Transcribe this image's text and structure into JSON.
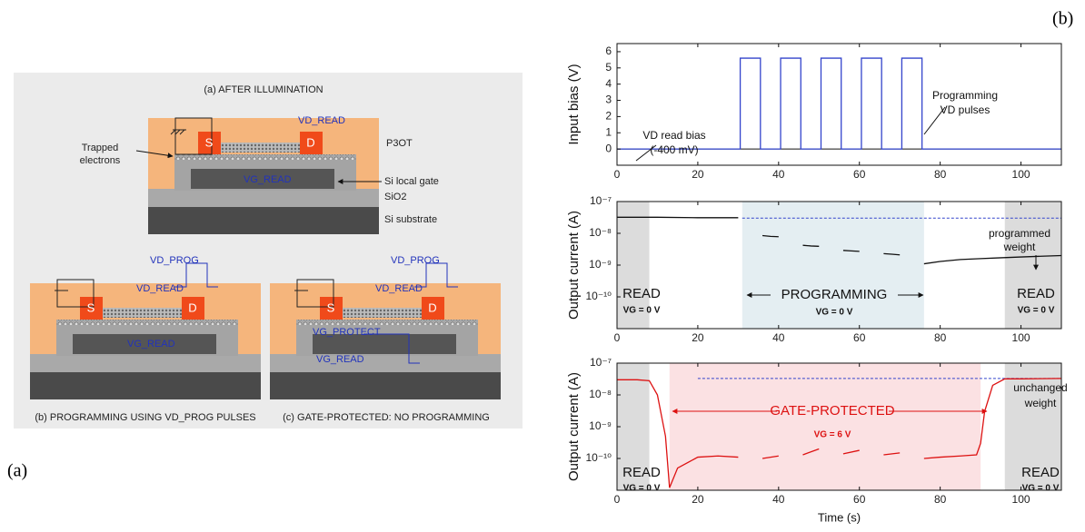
{
  "figure_labels": {
    "a": "(a)",
    "b": "(b)"
  },
  "diagram": {
    "panels": [
      {
        "caption": "(a) AFTER ILLUMINATION",
        "labels": [
          "VD_READ",
          "P3OT",
          "Trapped",
          "electrons",
          "Si local gate",
          "SiO2",
          "Si substrate",
          "VG_READ",
          "S",
          "D"
        ]
      },
      {
        "caption": "(b) PROGRAMMING USING VD_PROG PULSES",
        "labels": [
          "VD_PROG",
          "VD_READ",
          "VG_READ",
          "S",
          "D"
        ]
      },
      {
        "caption": "(c) GATE-PROTECTED: NO PROGRAMMING",
        "labels": [
          "VD_PROG",
          "VD_READ",
          "VG_PROTECT",
          "VG_READ",
          "S",
          "D"
        ]
      }
    ]
  },
  "chart_data": [
    {
      "type": "line",
      "ylabel": "Input bias (V)",
      "x": [
        0,
        30.5,
        30.5,
        35.5,
        35.5,
        40.5,
        40.5,
        45.5,
        45.5,
        50.5,
        50.5,
        55.5,
        55.5,
        60.5,
        60.5,
        65.5,
        65.5,
        70.5,
        70.5,
        75.5,
        75.5,
        110
      ],
      "series": [
        {
          "color": "#3344cc",
          "values": [
            0,
            0,
            5.6,
            5.6,
            0,
            0,
            5.6,
            5.6,
            0,
            0,
            5.6,
            5.6,
            0,
            0,
            5.6,
            5.6,
            0,
            0,
            5.6,
            5.6,
            0,
            0
          ]
        }
      ],
      "hline": 0,
      "xlim": [
        0,
        110
      ],
      "xticks": [
        0,
        20,
        40,
        60,
        80,
        100
      ],
      "ylim": [
        -1,
        6.5
      ],
      "yticks": [
        0,
        1,
        2,
        3,
        4,
        5,
        6
      ],
      "annotations": [
        "VD read bias",
        "(-400 mV)",
        "Programming",
        "VD pulses"
      ]
    },
    {
      "type": "line",
      "ylabel": "Output current (A)",
      "log_scale": true,
      "x": [
        0,
        10,
        20,
        30,
        31,
        36,
        38,
        40,
        41,
        46,
        48,
        50,
        51,
        56,
        58,
        60,
        61,
        66,
        68,
        70,
        71,
        76,
        80,
        85,
        90,
        95,
        100,
        105,
        110
      ],
      "series": [
        {
          "color": "#111111",
          "values": [
            3.2e-08,
            3.2e-08,
            3.1e-08,
            3.1e-08,
            null,
            8.5e-09,
            8e-09,
            7.8e-09,
            null,
            4.2e-09,
            4e-09,
            3.9e-09,
            null,
            2.9e-09,
            2.8e-09,
            2.7e-09,
            null,
            2.3e-09,
            2.2e-09,
            2.1e-09,
            null,
            1.1e-09,
            1.3e-09,
            1.5e-09,
            1.6e-09,
            1.7e-09,
            1.8e-09,
            1.9e-09,
            2e-09
          ]
        }
      ],
      "ref_line": {
        "value": 3e-08,
        "x0": 31,
        "x1": 110,
        "color": "#3344cc"
      },
      "regions": [
        {
          "x0": 0,
          "x1": 8,
          "color": "#dcdcdc"
        },
        {
          "x0": 31,
          "x1": 76,
          "color": "#e4eef2"
        },
        {
          "x0": 96,
          "x1": 110,
          "color": "#dcdcdc"
        }
      ],
      "xlim": [
        0,
        110
      ],
      "xticks": [
        0,
        20,
        40,
        60,
        80,
        100
      ],
      "ylim": [
        1e-11,
        1e-07
      ],
      "yticks": [
        {
          "value": 1e-07,
          "label": "10⁻⁷"
        },
        {
          "value": 1e-08,
          "label": "10⁻⁸"
        },
        {
          "value": 1e-09,
          "label": "10⁻⁹"
        },
        {
          "value": 1e-10,
          "label": "10⁻¹⁰"
        }
      ],
      "annotations": [
        "READ",
        "VG = 0 V",
        "PROGRAMMING",
        "VG = 0 V",
        "READ",
        "VG = 0 V",
        "programmed",
        "weight"
      ]
    },
    {
      "type": "line",
      "ylabel": "Output current (A)",
      "xlabel": "Time (s)",
      "log_scale": true,
      "x": [
        0,
        5,
        8,
        10,
        12,
        13,
        15,
        20,
        25,
        30,
        31,
        36,
        40,
        41,
        46,
        50,
        51,
        56,
        60,
        61,
        66,
        70,
        71,
        76,
        80,
        85,
        89,
        90,
        91,
        93,
        96,
        100,
        110
      ],
      "series": [
        {
          "color": "#dd1111",
          "values": [
            3e-08,
            3e-08,
            2.8e-08,
            1e-08,
            5e-10,
            1.2e-11,
            5e-11,
            1.1e-10,
            1.2e-10,
            1.1e-10,
            null,
            1e-10,
            1.2e-10,
            null,
            1.3e-10,
            2e-10,
            null,
            1.4e-10,
            1.8e-10,
            null,
            1.3e-10,
            1.5e-10,
            null,
            1e-10,
            1.1e-10,
            1.2e-10,
            1.3e-10,
            3e-10,
            3e-09,
            2e-08,
            3.2e-08,
            3.2e-08,
            3.3e-08
          ]
        }
      ],
      "ref_line": {
        "value": 3.3e-08,
        "x0": 20,
        "x1": 110,
        "color": "#3344cc"
      },
      "regions": [
        {
          "x0": 0,
          "x1": 8,
          "color": "#dcdcdc"
        },
        {
          "x0": 13,
          "x1": 90,
          "color": "#fbe1e3"
        },
        {
          "x0": 96,
          "x1": 110,
          "color": "#dcdcdc"
        }
      ],
      "xlim": [
        0,
        110
      ],
      "xticks": [
        0,
        20,
        40,
        60,
        80,
        100
      ],
      "ylim": [
        1e-11,
        1e-07
      ],
      "yticks": [
        {
          "value": 1e-07,
          "label": "10⁻⁷"
        },
        {
          "value": 1e-08,
          "label": "10⁻⁸"
        },
        {
          "value": 1e-09,
          "label": "10⁻⁹"
        },
        {
          "value": 1e-10,
          "label": "10⁻¹⁰"
        }
      ],
      "annotations": [
        "READ",
        "VG = 0 V",
        "GATE-PROTECTED",
        "VG = 6 V",
        "READ",
        "VG = 0 V",
        "unchanged",
        "weight"
      ]
    }
  ]
}
